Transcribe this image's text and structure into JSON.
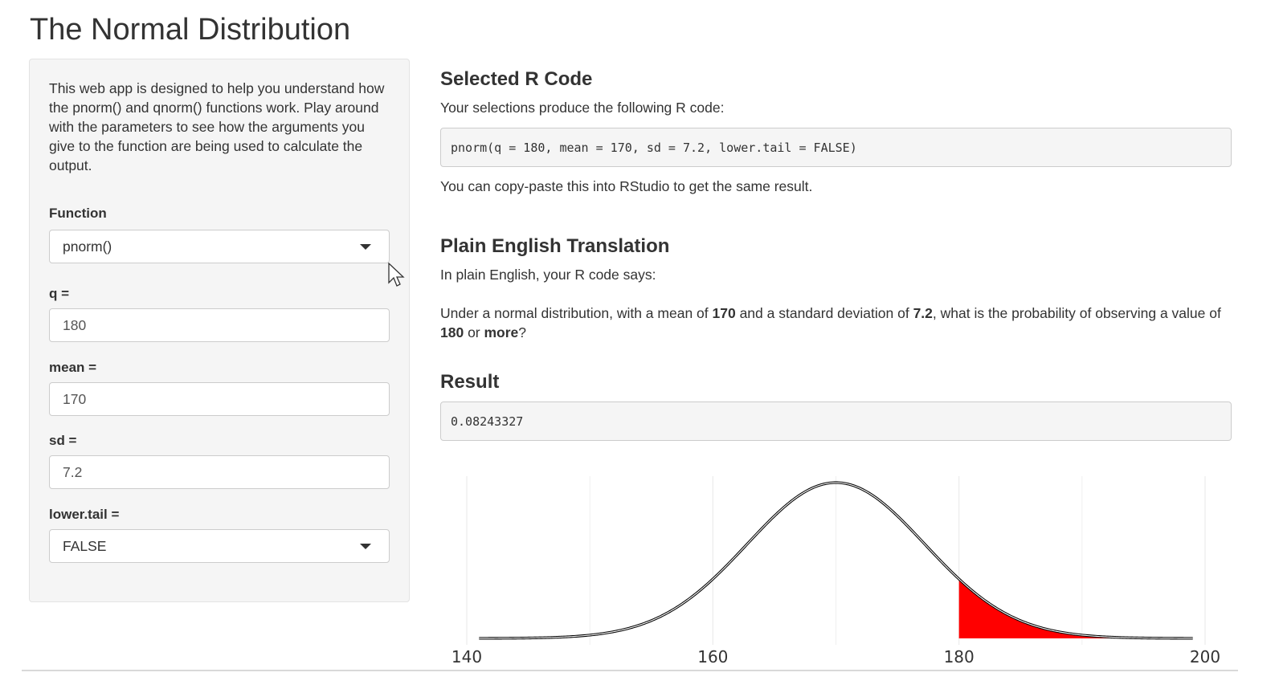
{
  "page": {
    "title": "The Normal Distribution"
  },
  "sidebar": {
    "intro": "This web app is designed to help you understand how the pnorm() and qnorm() functions work. Play around with the parameters to see how the arguments you give to the function are being used to calculate the output.",
    "function_label": "Function",
    "function_value": "pnorm()",
    "q_label": "q =",
    "q_value": "180",
    "mean_label": "mean =",
    "mean_value": "170",
    "sd_label": "sd =",
    "sd_value": "7.2",
    "lower_tail_label": "lower.tail =",
    "lower_tail_value": "FALSE"
  },
  "main": {
    "code_heading": "Selected R Code",
    "code_intro": "Your selections produce the following R code:",
    "code": "pnorm(q = 180, mean = 170, sd = 7.2, lower.tail = FALSE)",
    "code_note": "You can copy-paste this into RStudio to get the same result.",
    "translation_heading": "Plain English Translation",
    "translation_intro": "In plain English, your R code says:",
    "translation": {
      "part1": "Under a normal distribution, with a mean of ",
      "mean": "170",
      "part2": " and a standard deviation of ",
      "sd": "7.2",
      "part3": ", what is the probability of observing a value of ",
      "q": "180",
      "part4": " or ",
      "direction": "more",
      "part5": "?"
    },
    "result_heading": "Result",
    "result": "0.08243327"
  },
  "colors": {
    "shade": "#ff0000",
    "curve": "#000000",
    "grid": "#ebebeb"
  },
  "chart_data": {
    "type": "area",
    "distribution": "normal",
    "mean": 170,
    "sd": 7.2,
    "shade_from": 180,
    "shade_to": 200,
    "xlim": [
      140,
      200
    ],
    "x_ticks": [
      "140",
      "160",
      "180",
      "200"
    ],
    "title": "",
    "xlabel": "",
    "ylabel": "",
    "grid": true
  }
}
